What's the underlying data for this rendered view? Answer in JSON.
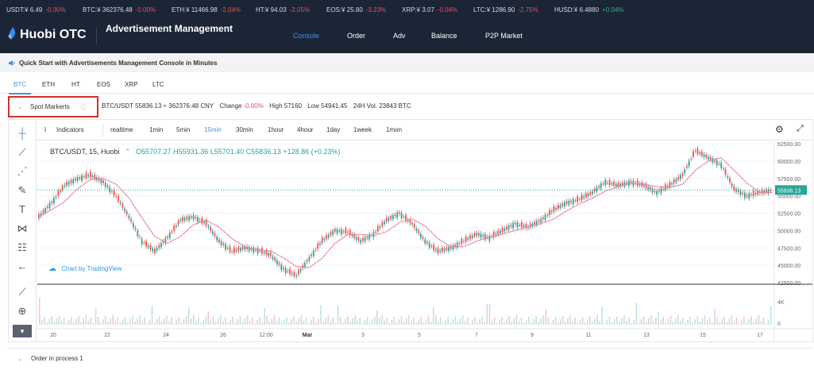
{
  "ticker": [
    {
      "name": "USDT:¥ 6.49",
      "change": "-0.30%",
      "dir": "down"
    },
    {
      "name": "BTC:¥ 362376.48",
      "change": "-0.00%",
      "dir": "down"
    },
    {
      "name": "ETH:¥ 11466.98",
      "change": "-2.04%",
      "dir": "down"
    },
    {
      "name": "HT:¥ 94.03",
      "change": "-2.05%",
      "dir": "down"
    },
    {
      "name": "EOS:¥ 25.80",
      "change": "-3.23%",
      "dir": "down"
    },
    {
      "name": "XRP:¥ 3.07",
      "change": "-0.04%",
      "dir": "down"
    },
    {
      "name": "LTC:¥ 1286.90",
      "change": "-2.75%",
      "dir": "down"
    },
    {
      "name": "HUSD:¥ 6.4880",
      "change": "+0.04%",
      "dir": "up"
    }
  ],
  "header": {
    "logo_text": "Huobi OTC",
    "page_title": "Advertisement Management Console",
    "nav": [
      "Console",
      "Order",
      "Adv",
      "Balance",
      "P2P Market"
    ],
    "active_nav": "Console"
  },
  "quickstart": {
    "text": "Quick Start with Advertisements Management Console in Minutes"
  },
  "coin_tabs": [
    "BTC",
    "ETH",
    "HT",
    "EOS",
    "XRP",
    "LTC"
  ],
  "active_coin": "BTC",
  "spot": {
    "label": "Spot Markerts",
    "pair": "BTC/USDT 55836.13 ≈ 362376.48 CNY",
    "change_label": "Change",
    "change": "-0.00%",
    "high": "High 57160",
    "low": "Low 54941.45",
    "vol": "24H Vol. 23843 BTC"
  },
  "chart_toolbar": {
    "indicators": "Indicators",
    "intervals": [
      "realtime",
      "1min",
      "5min",
      "15min",
      "30min",
      "1hour",
      "4hour",
      "1day",
      "1week",
      "1mon"
    ],
    "active_interval": "15min"
  },
  "chart_legend": {
    "symbol": "BTC/USDT, 15, Huobi",
    "o": "O55707.27",
    "h": "H55931.36",
    "l": "L55701.40",
    "c": "C55836.13",
    "delta": "+128.86 (+0.23%)"
  },
  "tradingview_link": "Chart by TradingView",
  "chart_data": {
    "type": "line",
    "title": "BTC/USDT, 15, Huobi",
    "series": [
      {
        "name": "BTC/USDT",
        "values": [
          52000,
          54000,
          56500,
          57500,
          58000,
          57000,
          55000,
          52000,
          48500,
          47000,
          49000,
          51500,
          52000,
          51000,
          48500,
          47000,
          47500,
          47200,
          46500,
          44500,
          43500,
          46000,
          48500,
          50000,
          49800,
          48500,
          49500,
          51500,
          52500,
          51000,
          48500,
          47000,
          47500,
          48500,
          49500,
          49000,
          50000,
          51000,
          50500,
          51500,
          53000,
          54000,
          54500,
          55500,
          57000,
          56500,
          57000,
          56500,
          55500,
          56500,
          58000,
          61500,
          60500,
          59500,
          56000,
          55000,
          55500,
          55800
        ]
      }
    ],
    "ylabels": [
      "62500.00",
      "60000.00",
      "57500.00",
      "55000.00",
      "52500.00",
      "50000.00",
      "47500.00",
      "45000.00",
      "42500.00"
    ],
    "ylim": [
      42500,
      62500
    ],
    "last_price": "55836.13",
    "xlabels": [
      "20",
      "22",
      "24",
      "26",
      "12:00",
      "Mar",
      "3",
      "5",
      "7",
      "9",
      "11",
      "13",
      "15",
      "17"
    ],
    "volume_ticks": [
      "4K",
      "0"
    ]
  },
  "bottom": {
    "label": "Order in process 1"
  }
}
